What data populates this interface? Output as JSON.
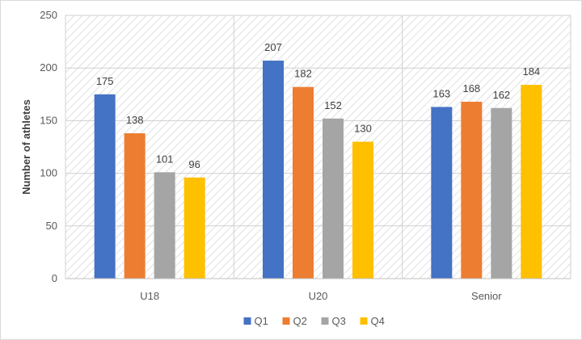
{
  "chart_data": {
    "type": "bar",
    "title": "",
    "xlabel": "",
    "ylabel": "Number of athletes",
    "categories": [
      "U18",
      "U20",
      "Senior"
    ],
    "series": [
      {
        "name": "Q1",
        "values": [
          175,
          207,
          163
        ],
        "color": "#4472C4"
      },
      {
        "name": "Q2",
        "values": [
          138,
          182,
          168
        ],
        "color": "#ED7D31"
      },
      {
        "name": "Q3",
        "values": [
          101,
          152,
          162
        ],
        "color": "#A5A5A5"
      },
      {
        "name": "Q4",
        "values": [
          96,
          130,
          184
        ],
        "color": "#FFC000"
      }
    ],
    "ylim": [
      0,
      250
    ],
    "yticks": [
      0,
      50,
      100,
      150,
      200,
      250
    ],
    "grid": true,
    "plot_background": "diagonal-hatch",
    "data_labels": true,
    "legend": "bottom"
  }
}
